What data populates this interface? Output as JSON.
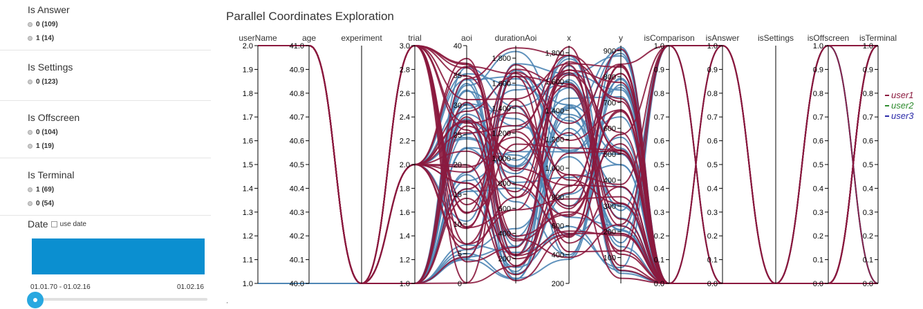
{
  "sidebar": {
    "facets": [
      {
        "title": "Is Answer",
        "options": [
          "0 (109)",
          "1 (14)"
        ]
      },
      {
        "title": "Is Settings",
        "options": [
          "0 (123)"
        ]
      },
      {
        "title": "Is Offscreen",
        "options": [
          "0 (104)",
          "1 (19)"
        ]
      },
      {
        "title": "Is Terminal",
        "options": [
          "1 (69)",
          "0 (54)"
        ]
      }
    ],
    "date": {
      "title": "Date",
      "checkbox_label": "use date",
      "range_label": "01.01.70 - 01.02.16",
      "end_label": "01.02.16",
      "hist_color": "#0b8fd0",
      "slider_color": "#29a8e0"
    }
  },
  "chart_data": {
    "type": "parallel-coordinates",
    "title": "Parallel Coordinates Exploration",
    "axes": [
      {
        "name": "userName",
        "domain": [
          1.0,
          2.0
        ],
        "ticks": [
          "1.0",
          "1.1",
          "1.2",
          "1.3",
          "1.4",
          "1.5",
          "1.6",
          "1.7",
          "1.8",
          "1.9",
          "2.0"
        ]
      },
      {
        "name": "age",
        "domain": [
          40.0,
          41.0
        ],
        "ticks": [
          "40.0",
          "40.1",
          "40.2",
          "40.3",
          "40.4",
          "40.5",
          "40.6",
          "40.7",
          "40.8",
          "40.9",
          "41.0"
        ]
      },
      {
        "name": "experiment",
        "domain": [
          0,
          1
        ],
        "ticks": []
      },
      {
        "name": "trial",
        "domain": [
          1.0,
          3.0
        ],
        "ticks": [
          "1.0",
          "1.2",
          "1.4",
          "1.6",
          "1.8",
          "2.0",
          "2.2",
          "2.4",
          "2.6",
          "2.8",
          "3.0"
        ]
      },
      {
        "name": "aoi",
        "domain": [
          0,
          40
        ],
        "ticks": [
          "0",
          "5",
          "10",
          "15",
          "20",
          "25",
          "30",
          "35",
          "40"
        ]
      },
      {
        "name": "durationAoi",
        "domain": [
          0,
          1900
        ],
        "ticks": [
          "200",
          "400",
          "600",
          "800",
          "1,000",
          "1,200",
          "1,400",
          "1,600",
          "1,800"
        ]
      },
      {
        "name": "x",
        "domain": [
          200,
          1850
        ],
        "ticks": [
          "200",
          "400",
          "600",
          "800",
          "1,000",
          "1,200",
          "1,400",
          "1,600",
          "1,800"
        ]
      },
      {
        "name": "y",
        "domain": [
          0,
          920
        ],
        "ticks": [
          "100",
          "200",
          "300",
          "400",
          "500",
          "600",
          "700",
          "800",
          "900"
        ]
      },
      {
        "name": "isComparison",
        "domain": [
          0,
          1
        ],
        "ticks": [
          "0.0",
          "0.1",
          "0.2",
          "0.3",
          "0.4",
          "0.5",
          "0.6",
          "0.7",
          "0.8",
          "0.9",
          "1.0"
        ]
      },
      {
        "name": "isAnswer",
        "domain": [
          0,
          1
        ],
        "ticks": [
          "0.0",
          "0.1",
          "0.2",
          "0.3",
          "0.4",
          "0.5",
          "0.6",
          "0.7",
          "0.8",
          "0.9",
          "1.0"
        ]
      },
      {
        "name": "isSettings",
        "domain": [
          0,
          1
        ],
        "ticks": []
      },
      {
        "name": "isOffscreen",
        "domain": [
          0,
          1
        ],
        "ticks": [
          "0.0",
          "0.1",
          "0.2",
          "0.3",
          "0.4",
          "0.5",
          "0.6",
          "0.7",
          "0.8",
          "0.9",
          "1.0"
        ]
      },
      {
        "name": "isTerminal",
        "domain": [
          0,
          1
        ],
        "ticks": [
          "0.0",
          "0.1",
          "0.2",
          "0.3",
          "0.4",
          "0.5",
          "0.6",
          "0.7",
          "0.8",
          "0.9",
          "1.0"
        ]
      }
    ],
    "legend": [
      {
        "name": "user1",
        "color": "#8b1a3e"
      },
      {
        "name": "user2",
        "color": "#2e8b2e"
      },
      {
        "name": "user3",
        "color": "#2a2aa8"
      }
    ],
    "line_colors": {
      "userName_2": "#8b1a3e",
      "userName_1": "#4f86b5"
    },
    "legend_placement": "right",
    "records": 123
  },
  "stray_glyph": "'"
}
